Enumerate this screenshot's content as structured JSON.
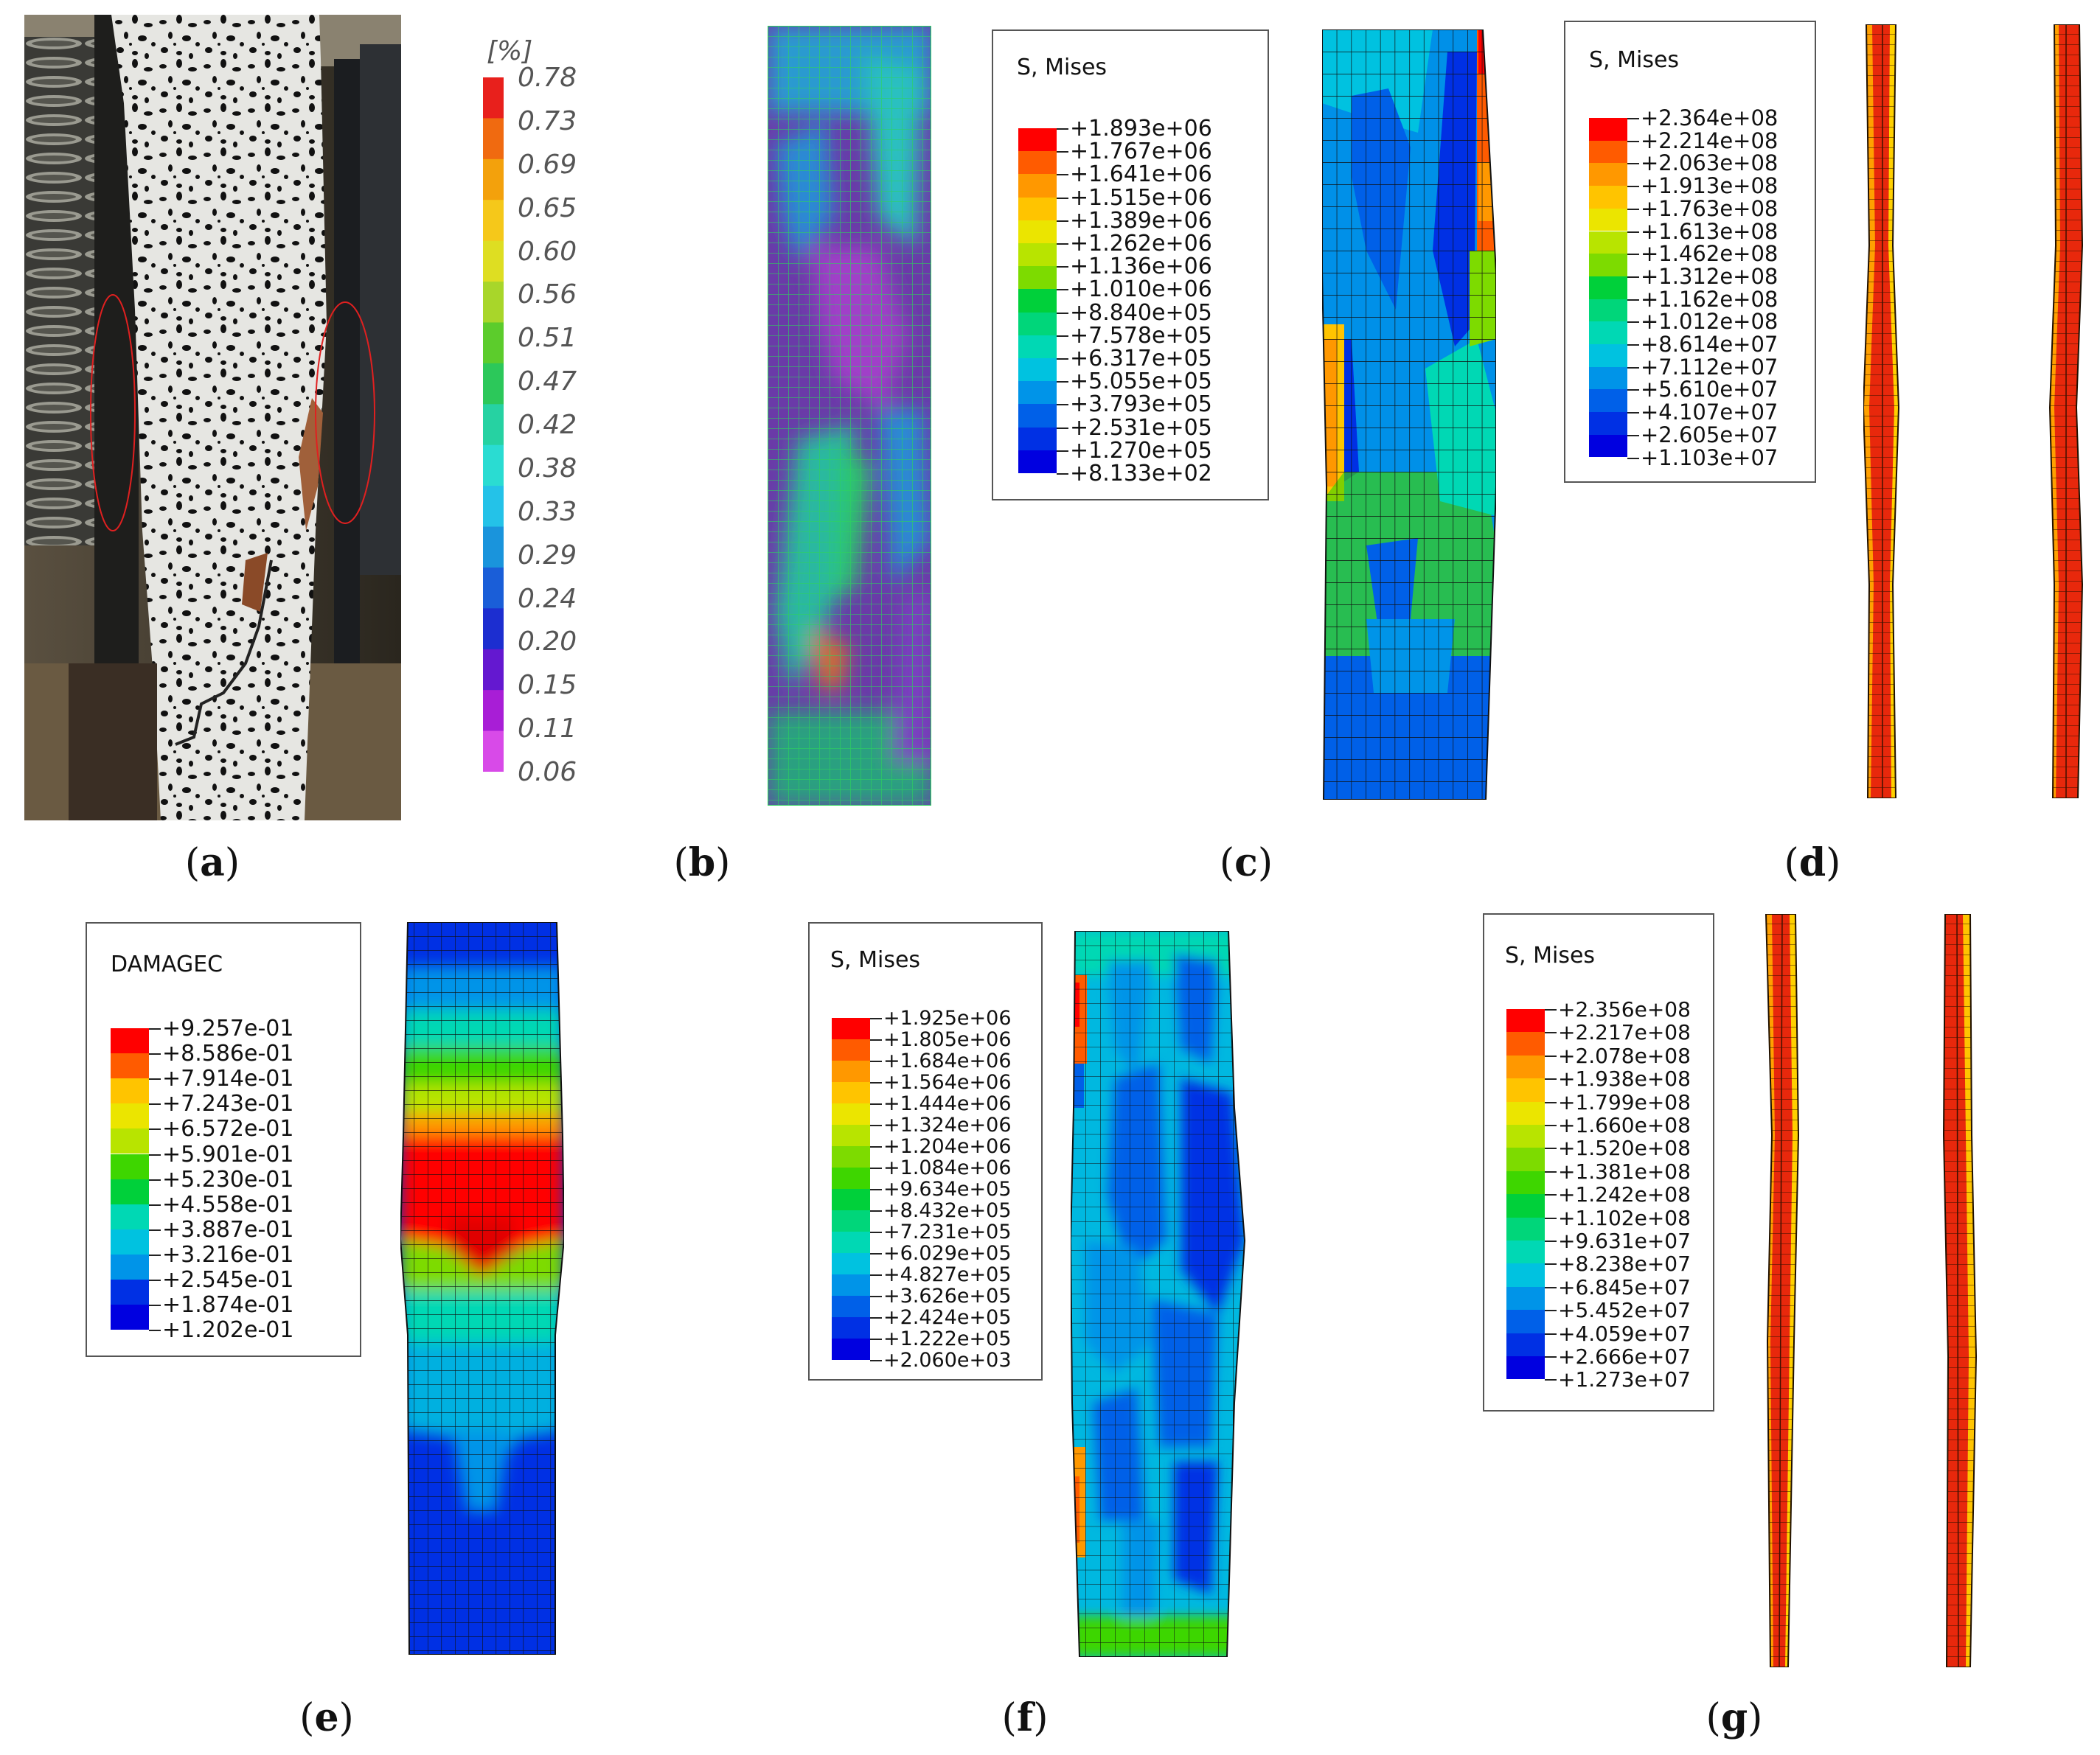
{
  "captions": [
    "a",
    "b",
    "c",
    "d",
    "e",
    "f",
    "g"
  ],
  "dic_scale": {
    "unit": "[%]",
    "values": [
      "0.78",
      "0.73",
      "0.69",
      "0.65",
      "0.60",
      "0.56",
      "0.51",
      "0.47",
      "0.42",
      "0.38",
      "0.33",
      "0.29",
      "0.24",
      "0.20",
      "0.15",
      "0.11",
      "0.06"
    ],
    "colors": [
      "#e8201c",
      "#f06a10",
      "#f3a10c",
      "#f5c81a",
      "#dede22",
      "#a8d62a",
      "#5ccc2c",
      "#2cc85a",
      "#26d2a2",
      "#2adcd2",
      "#24c2e8",
      "#1a94dc",
      "#1a5ed8",
      "#1c2ed0",
      "#6418d0",
      "#a81ed6",
      "#d84ae8"
    ]
  },
  "legend_c": {
    "title": "S, Mises",
    "values": [
      "+1.893e+06",
      "+1.767e+06",
      "+1.641e+06",
      "+1.515e+06",
      "+1.389e+06",
      "+1.262e+06",
      "+1.136e+06",
      "+1.010e+06",
      "+8.840e+05",
      "+7.578e+05",
      "+6.317e+05",
      "+5.055e+05",
      "+3.793e+05",
      "+2.531e+05",
      "+1.270e+05",
      "+8.133e+02"
    ]
  },
  "legend_d": {
    "title": "S, Mises",
    "values": [
      "+2.364e+08",
      "+2.214e+08",
      "+2.063e+08",
      "+1.913e+08",
      "+1.763e+08",
      "+1.613e+08",
      "+1.462e+08",
      "+1.312e+08",
      "+1.162e+08",
      "+1.012e+08",
      "+8.614e+07",
      "+7.112e+07",
      "+5.610e+07",
      "+4.107e+07",
      "+2.605e+07",
      "+1.103e+07"
    ]
  },
  "legend_e": {
    "title": "DAMAGEC",
    "values": [
      "+9.257e-01",
      "+8.586e-01",
      "+7.914e-01",
      "+7.243e-01",
      "+6.572e-01",
      "+5.901e-01",
      "+5.230e-01",
      "+4.558e-01",
      "+3.887e-01",
      "+3.216e-01",
      "+2.545e-01",
      "+1.874e-01",
      "+1.202e-01"
    ]
  },
  "legend_f": {
    "title": "S, Mises",
    "values": [
      "+1.925e+06",
      "+1.805e+06",
      "+1.684e+06",
      "+1.564e+06",
      "+1.444e+06",
      "+1.324e+06",
      "+1.204e+06",
      "+1.084e+06",
      "+9.634e+05",
      "+8.432e+05",
      "+7.231e+05",
      "+6.029e+05",
      "+4.827e+05",
      "+3.626e+05",
      "+2.424e+05",
      "+1.222e+05",
      "+2.060e+03"
    ]
  },
  "legend_g": {
    "title": "S, Mises",
    "values": [
      "+2.356e+08",
      "+2.217e+08",
      "+2.078e+08",
      "+1.938e+08",
      "+1.799e+08",
      "+1.660e+08",
      "+1.520e+08",
      "+1.381e+08",
      "+1.242e+08",
      "+1.102e+08",
      "+9.631e+07",
      "+8.238e+07",
      "+6.845e+07",
      "+5.452e+07",
      "+4.059e+07",
      "+2.666e+07",
      "+1.273e+07"
    ]
  },
  "contour_colors": [
    "#ff0000",
    "#ff5b00",
    "#ff9800",
    "#ffc400",
    "#ebe500",
    "#b8e400",
    "#7ddb00",
    "#3ed600",
    "#00d03a",
    "#00d67a",
    "#00d8b4",
    "#00c2e0",
    "#0094e8",
    "#0060e8",
    "#0030e4",
    "#0000e0"
  ]
}
